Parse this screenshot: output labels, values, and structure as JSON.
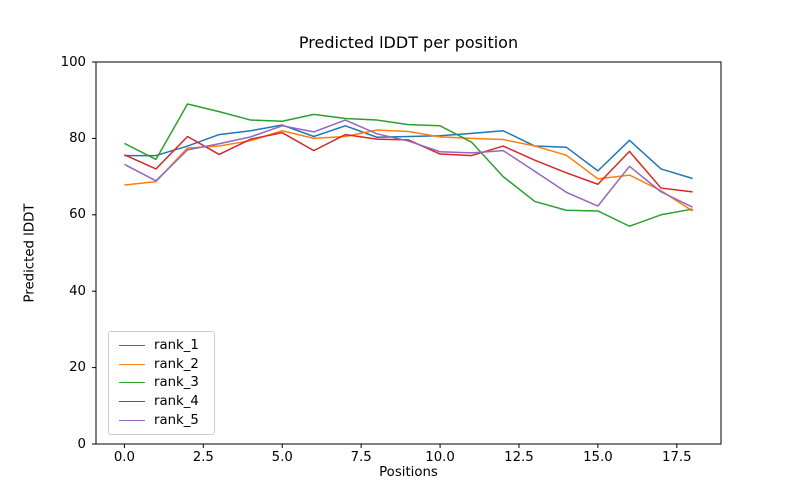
{
  "chart_data": {
    "type": "line",
    "title": "Predicted lDDT per position",
    "xlabel": "Positions",
    "ylabel": "Predicted lDDT",
    "xlim": [
      -0.9,
      18.9
    ],
    "ylim": [
      0,
      100
    ],
    "grid": false,
    "legend_position": "lower left",
    "xtick_labels": [
      "0.0",
      "2.5",
      "5.0",
      "7.5",
      "10.0",
      "12.5",
      "15.0",
      "17.5"
    ],
    "xtick_values": [
      0,
      2.5,
      5,
      7.5,
      10,
      12.5,
      15,
      17.5
    ],
    "ytick_labels": [
      "0",
      "20",
      "40",
      "60",
      "80",
      "100"
    ],
    "ytick_values": [
      0,
      20,
      40,
      60,
      80,
      100
    ],
    "x": [
      0,
      1,
      2,
      3,
      4,
      5,
      6,
      7,
      8,
      9,
      10,
      11,
      12,
      13,
      14,
      15,
      16,
      17,
      18
    ],
    "series": [
      {
        "name": "rank_1",
        "color": "#1f77b4",
        "values": [
          75.5,
          75.5,
          78.0,
          81.0,
          82.0,
          83.5,
          80.5,
          83.3,
          80.3,
          80.5,
          80.7,
          81.3,
          82.0,
          78.0,
          77.7,
          71.5,
          79.5,
          72.0,
          69.5
        ]
      },
      {
        "name": "rank_2",
        "color": "#ff7f0e",
        "values": [
          67.8,
          68.7,
          77.5,
          78.0,
          79.4,
          82.0,
          80.0,
          80.5,
          82.2,
          81.8,
          80.4,
          80.0,
          79.7,
          78.0,
          75.6,
          69.4,
          70.4,
          66.3,
          61.0
        ]
      },
      {
        "name": "rank_3",
        "color": "#2ca02c",
        "values": [
          78.7,
          74.5,
          89.0,
          87.0,
          84.8,
          84.5,
          86.3,
          85.2,
          84.8,
          83.6,
          83.3,
          79.0,
          70.0,
          63.5,
          61.2,
          61.0,
          57.0,
          60.0,
          61.5
        ]
      },
      {
        "name": "rank_4",
        "color": "#d62728",
        "values": [
          75.7,
          72.0,
          80.5,
          75.8,
          79.8,
          81.5,
          76.8,
          81.0,
          79.8,
          79.6,
          75.9,
          75.5,
          78.0,
          74.3,
          71.0,
          68.0,
          76.6,
          67.0,
          66.0
        ]
      },
      {
        "name": "rank_5",
        "color": "#9467bd",
        "values": [
          73.2,
          68.9,
          77.0,
          78.6,
          80.4,
          83.3,
          81.7,
          84.8,
          81.2,
          79.3,
          76.5,
          76.2,
          76.8,
          71.4,
          65.9,
          62.3,
          72.7,
          66.0,
          62.0
        ]
      }
    ]
  }
}
